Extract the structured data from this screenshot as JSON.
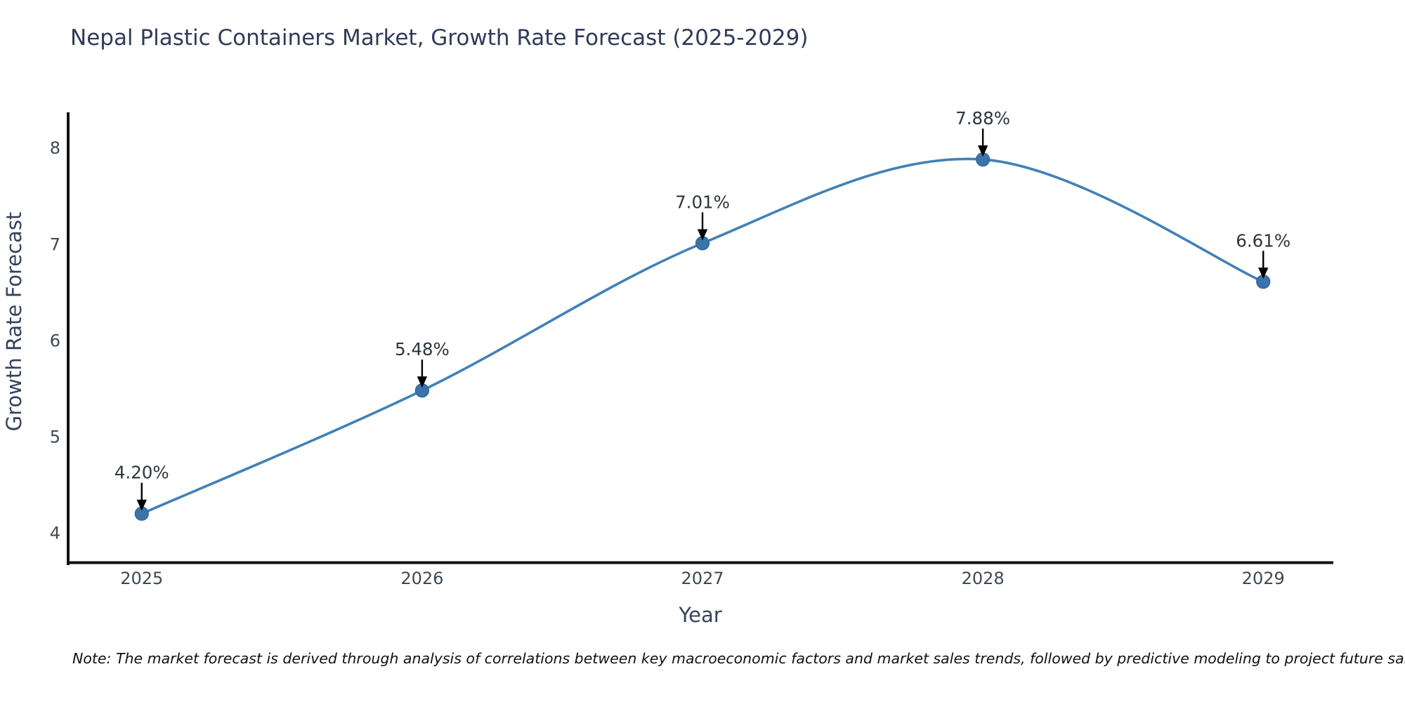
{
  "title": "Nepal Plastic Containers Market, Growth Rate Forecast (2025-2029)",
  "note": "Note: The market forecast is derived through analysis of correlations between key macroeconomic factors and market sales trends, followed by predictive modeling to project future sales.",
  "chart_data": {
    "type": "line",
    "title": "Nepal Plastic Containers Market, Growth Rate Forecast (2025-2029)",
    "xlabel": "Year",
    "ylabel": "Growth Rate Forecast",
    "x": [
      2025,
      2026,
      2027,
      2028,
      2029
    ],
    "series": [
      {
        "name": "Growth Rate Forecast",
        "values": [
          4.2,
          5.48,
          7.01,
          7.88,
          6.61
        ]
      }
    ],
    "point_labels": [
      "4.20%",
      "5.48%",
      "7.01%",
      "7.88%",
      "6.61%"
    ],
    "yticks": [
      4,
      5,
      6,
      7,
      8
    ],
    "xticks": [
      2025,
      2026,
      2027,
      2028,
      2029
    ],
    "ylim": [
      3.68,
      8.37
    ],
    "xlim": [
      2024.735,
      2029.25
    ],
    "grid": false,
    "legend": "none",
    "smooth": true,
    "colors": {
      "line": "#4281b7",
      "marker": "#3a74ab",
      "marker_edge": "#2f6195",
      "annotation_text": "#2f353d",
      "arrow": "#000000",
      "axis": "#111111",
      "tick_label": "#3e4954",
      "axis_label": "#36425e",
      "title": "#2f3b59",
      "background": "#ffffff"
    }
  }
}
